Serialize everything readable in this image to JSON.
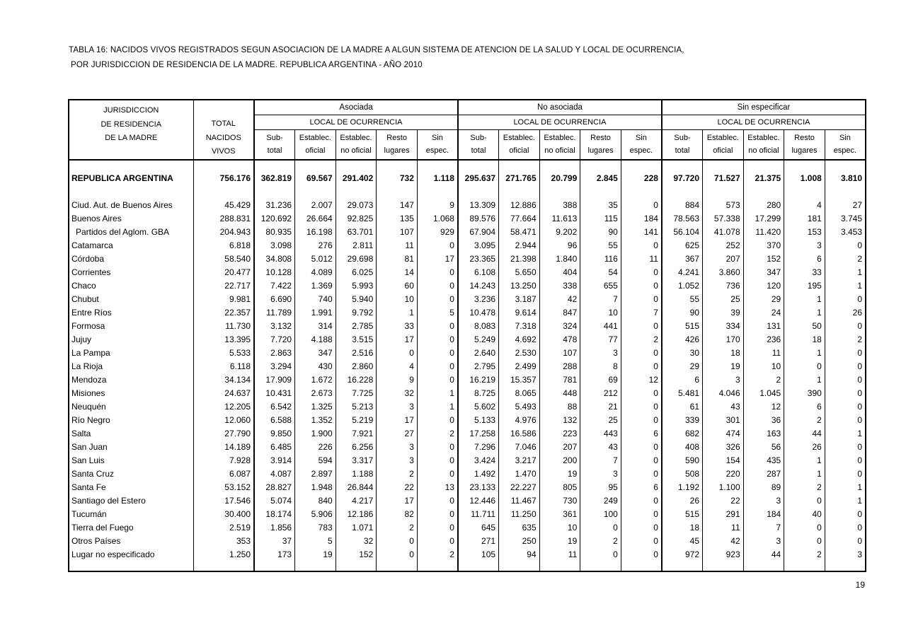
{
  "title": {
    "line1": "TABLA 16: NACIDOS VIVOS REGISTRADOS SEGUN ASOCIACION DE LA MADRE A ALGUN SISTEMA DE ATENCION DE LA SALUD Y LOCAL DE OCURRENCIA,",
    "line2": "POR JURISDICCION DE RESIDENCIA DE LA MADRE. REPUBLICA ARGENTINA -  AÑO 2010"
  },
  "page_number": "19",
  "table": {
    "header": {
      "jurisdiction_lines": [
        "JURISDICCION",
        "DE RESIDENCIA",
        "DE LA MADRE"
      ],
      "total_lines": [
        "TOTAL",
        "NACIDOS",
        "VIVOS"
      ],
      "groups": [
        {
          "label": "Asociada",
          "sublabel": "LOCAL DE OCURRENCIA"
        },
        {
          "label": "No asociada",
          "sublabel": "LOCAL DE OCURRENCIA"
        },
        {
          "label": "Sin especificar",
          "sublabel": "LOCAL DE OCURRENCIA"
        }
      ],
      "subcolumns": [
        [
          "Sub-",
          "total"
        ],
        [
          "Establec.",
          "oficial"
        ],
        [
          "Establec.",
          "no oficial"
        ],
        [
          "Resto",
          "lugares"
        ],
        [
          "Sin",
          "espec."
        ]
      ]
    },
    "rows": [
      {
        "name": "REPUBLICA ARGENTINA",
        "bold": true,
        "values": [
          "756.176",
          "362.819",
          "69.567",
          "291.402",
          "732",
          "1.118",
          "295.637",
          "271.765",
          "20.799",
          "2.845",
          "228",
          "97.720",
          "71.527",
          "21.375",
          "1.008",
          "3.810"
        ]
      },
      {
        "name": "Ciud. Aut. de  Buenos Aires",
        "values": [
          "45.429",
          "31.236",
          "2.007",
          "29.073",
          "147",
          "9",
          "13.309",
          "12.886",
          "388",
          "35",
          "0",
          "884",
          "573",
          "280",
          "4",
          "27"
        ]
      },
      {
        "name": "Buenos Aires",
        "values": [
          "288.831",
          "120.692",
          "26.664",
          "92.825",
          "135",
          "1.068",
          "89.576",
          "77.664",
          "11.613",
          "115",
          "184",
          "78.563",
          "57.338",
          "17.299",
          "181",
          "3.745"
        ]
      },
      {
        "name": "Partidos del Aglom. GBA",
        "indent": true,
        "values": [
          "204.943",
          "80.935",
          "16.198",
          "63.701",
          "107",
          "929",
          "67.904",
          "58.471",
          "9.202",
          "90",
          "141",
          "56.104",
          "41.078",
          "11.420",
          "153",
          "3.453"
        ]
      },
      {
        "name": "Catamarca",
        "values": [
          "6.818",
          "3.098",
          "276",
          "2.811",
          "11",
          "0",
          "3.095",
          "2.944",
          "96",
          "55",
          "0",
          "625",
          "252",
          "370",
          "3",
          "0"
        ]
      },
      {
        "name": "Córdoba",
        "values": [
          "58.540",
          "34.808",
          "5.012",
          "29.698",
          "81",
          "17",
          "23.365",
          "21.398",
          "1.840",
          "116",
          "11",
          "367",
          "207",
          "152",
          "6",
          "2"
        ]
      },
      {
        "name": "Corrientes",
        "values": [
          "20.477",
          "10.128",
          "4.089",
          "6.025",
          "14",
          "0",
          "6.108",
          "5.650",
          "404",
          "54",
          "0",
          "4.241",
          "3.860",
          "347",
          "33",
          "1"
        ]
      },
      {
        "name": "Chaco",
        "values": [
          "22.717",
          "7.422",
          "1.369",
          "5.993",
          "60",
          "0",
          "14.243",
          "13.250",
          "338",
          "655",
          "0",
          "1.052",
          "736",
          "120",
          "195",
          "1"
        ]
      },
      {
        "name": "Chubut",
        "values": [
          "9.981",
          "6.690",
          "740",
          "5.940",
          "10",
          "0",
          "3.236",
          "3.187",
          "42",
          "7",
          "0",
          "55",
          "25",
          "29",
          "1",
          "0"
        ]
      },
      {
        "name": "Entre Ríos",
        "values": [
          "22.357",
          "11.789",
          "1.991",
          "9.792",
          "1",
          "5",
          "10.478",
          "9.614",
          "847",
          "10",
          "7",
          "90",
          "39",
          "24",
          "1",
          "26"
        ]
      },
      {
        "name": "Formosa",
        "values": [
          "11.730",
          "3.132",
          "314",
          "2.785",
          "33",
          "0",
          "8.083",
          "7.318",
          "324",
          "441",
          "0",
          "515",
          "334",
          "131",
          "50",
          "0"
        ]
      },
      {
        "name": "Jujuy",
        "values": [
          "13.395",
          "7.720",
          "4.188",
          "3.515",
          "17",
          "0",
          "5.249",
          "4.692",
          "478",
          "77",
          "2",
          "426",
          "170",
          "236",
          "18",
          "2"
        ]
      },
      {
        "name": "La Pampa",
        "values": [
          "5.533",
          "2.863",
          "347",
          "2.516",
          "0",
          "0",
          "2.640",
          "2.530",
          "107",
          "3",
          "0",
          "30",
          "18",
          "11",
          "1",
          "0"
        ]
      },
      {
        "name": "La Rioja",
        "values": [
          "6.118",
          "3.294",
          "430",
          "2.860",
          "4",
          "0",
          "2.795",
          "2.499",
          "288",
          "8",
          "0",
          "29",
          "19",
          "10",
          "0",
          "0"
        ]
      },
      {
        "name": "Mendoza",
        "values": [
          "34.134",
          "17.909",
          "1.672",
          "16.228",
          "9",
          "0",
          "16.219",
          "15.357",
          "781",
          "69",
          "12",
          "6",
          "3",
          "2",
          "1",
          "0"
        ]
      },
      {
        "name": "Misiones",
        "values": [
          "24.637",
          "10.431",
          "2.673",
          "7.725",
          "32",
          "1",
          "8.725",
          "8.065",
          "448",
          "212",
          "0",
          "5.481",
          "4.046",
          "1.045",
          "390",
          "0"
        ]
      },
      {
        "name": "Neuquén",
        "values": [
          "12.205",
          "6.542",
          "1.325",
          "5.213",
          "3",
          "1",
          "5.602",
          "5.493",
          "88",
          "21",
          "0",
          "61",
          "43",
          "12",
          "6",
          "0"
        ]
      },
      {
        "name": "Río Negro",
        "values": [
          "12.060",
          "6.588",
          "1.352",
          "5.219",
          "17",
          "0",
          "5.133",
          "4.976",
          "132",
          "25",
          "0",
          "339",
          "301",
          "36",
          "2",
          "0"
        ]
      },
      {
        "name": "Salta",
        "values": [
          "27.790",
          "9.850",
          "1.900",
          "7.921",
          "27",
          "2",
          "17.258",
          "16.586",
          "223",
          "443",
          "6",
          "682",
          "474",
          "163",
          "44",
          "1"
        ]
      },
      {
        "name": "San Juan",
        "values": [
          "14.189",
          "6.485",
          "226",
          "6.256",
          "3",
          "0",
          "7.296",
          "7.046",
          "207",
          "43",
          "0",
          "408",
          "326",
          "56",
          "26",
          "0"
        ]
      },
      {
        "name": "San Luis",
        "values": [
          "7.928",
          "3.914",
          "594",
          "3.317",
          "3",
          "0",
          "3.424",
          "3.217",
          "200",
          "7",
          "0",
          "590",
          "154",
          "435",
          "1",
          "0"
        ]
      },
      {
        "name": "Santa Cruz",
        "values": [
          "6.087",
          "4.087",
          "2.897",
          "1.188",
          "2",
          "0",
          "1.492",
          "1.470",
          "19",
          "3",
          "0",
          "508",
          "220",
          "287",
          "1",
          "0"
        ]
      },
      {
        "name": "Santa Fe",
        "values": [
          "53.152",
          "28.827",
          "1.948",
          "26.844",
          "22",
          "13",
          "23.133",
          "22.227",
          "805",
          "95",
          "6",
          "1.192",
          "1.100",
          "89",
          "2",
          "1"
        ]
      },
      {
        "name": "Santiago del Estero",
        "values": [
          "17.546",
          "5.074",
          "840",
          "4.217",
          "17",
          "0",
          "12.446",
          "11.467",
          "730",
          "249",
          "0",
          "26",
          "22",
          "3",
          "0",
          "1"
        ]
      },
      {
        "name": "Tucumán",
        "values": [
          "30.400",
          "18.174",
          "5.906",
          "12.186",
          "82",
          "0",
          "11.711",
          "11.250",
          "361",
          "100",
          "0",
          "515",
          "291",
          "184",
          "40",
          "0"
        ]
      },
      {
        "name": "Tierra del Fuego",
        "values": [
          "2.519",
          "1.856",
          "783",
          "1.071",
          "2",
          "0",
          "645",
          "635",
          "10",
          "0",
          "0",
          "18",
          "11",
          "7",
          "0",
          "0"
        ]
      },
      {
        "name": "Otros Países",
        "values": [
          "353",
          "37",
          "5",
          "32",
          "0",
          "0",
          "271",
          "250",
          "19",
          "2",
          "0",
          "45",
          "42",
          "3",
          "0",
          "0"
        ]
      },
      {
        "name": "Lugar no especificado",
        "values": [
          "1.250",
          "173",
          "19",
          "152",
          "0",
          "2",
          "105",
          "94",
          "11",
          "0",
          "0",
          "972",
          "923",
          "44",
          "2",
          "3"
        ]
      }
    ]
  }
}
